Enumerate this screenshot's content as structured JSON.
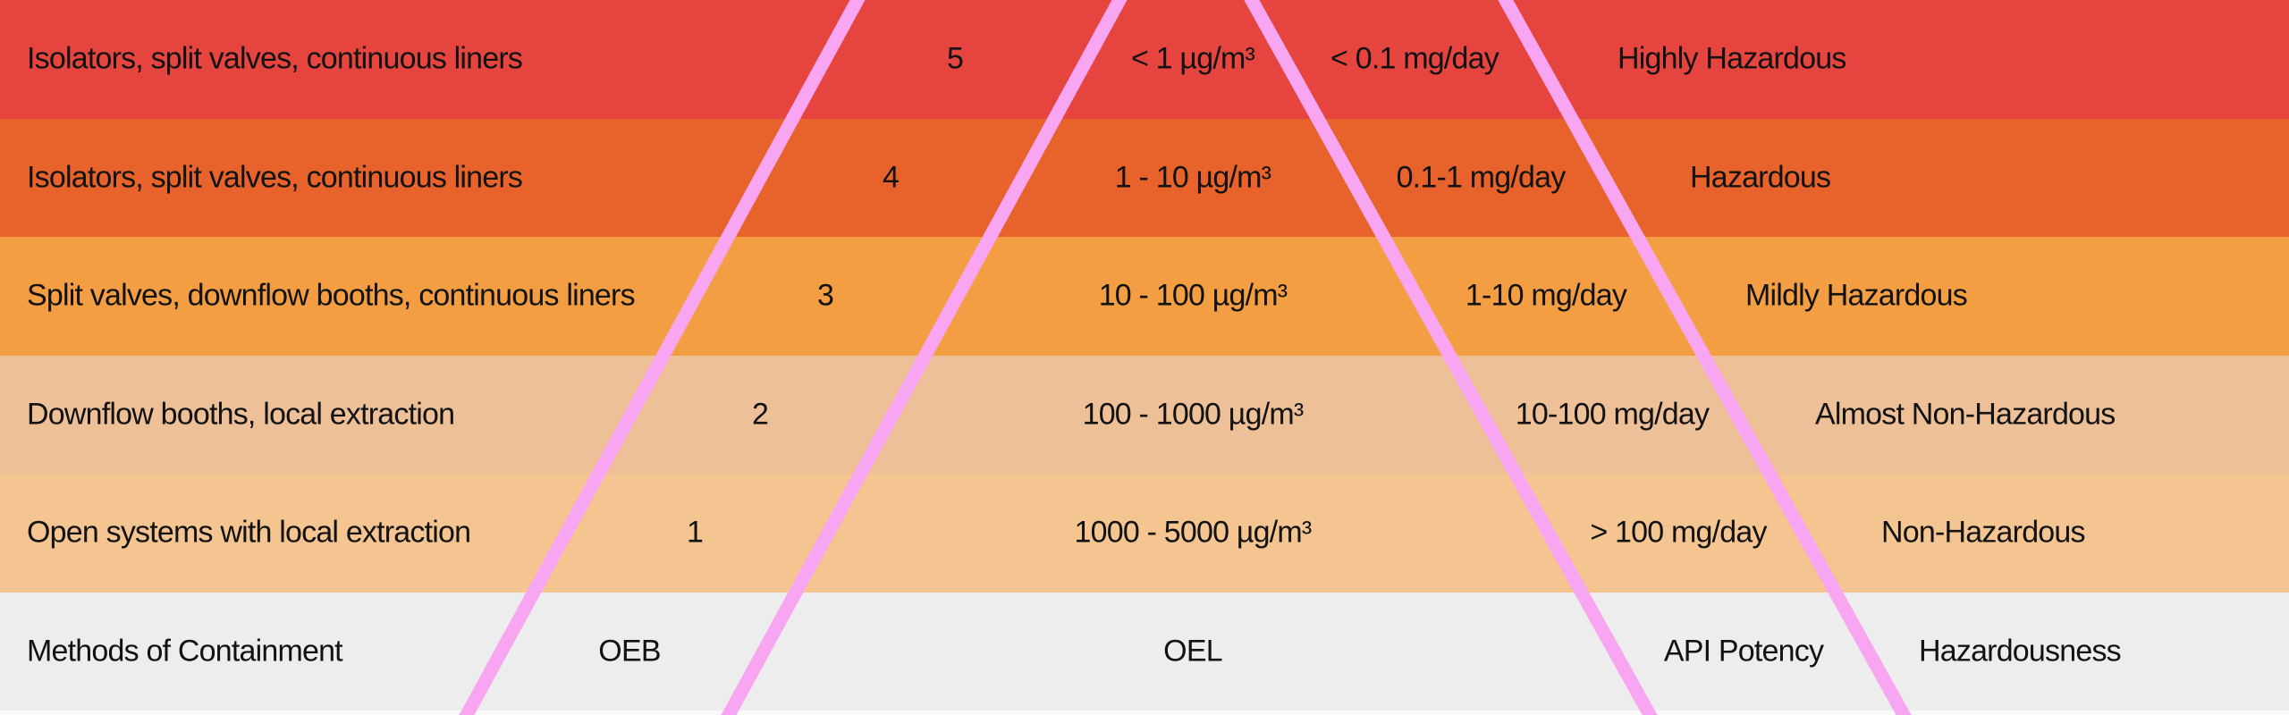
{
  "chart_data": {
    "type": "table",
    "columns": [
      "Methods of Containment",
      "OEB",
      "OEL",
      "API Potency",
      "Hazardousness"
    ],
    "rows": [
      {
        "methods": "Isolators, split valves, continuous liners",
        "oeb": "5",
        "oel": "< 1 µg/m³",
        "api_potency": "< 0.1 mg/day",
        "hazardousness": "Highly Hazardous",
        "band_color": "#E6453F"
      },
      {
        "methods": "Isolators, split valves, continuous liners",
        "oeb": "4",
        "oel": "1 - 10 µg/m³",
        "api_potency": "0.1-1 mg/day",
        "hazardousness": "Hazardous",
        "band_color": "#E8632B"
      },
      {
        "methods": "Split valves, downflow booths, continuous liners",
        "oeb": "3",
        "oel": "10 - 100 µg/m³",
        "api_potency": "1-10 mg/day",
        "hazardousness": "Mildly Hazardous",
        "band_color": "#F39E43"
      },
      {
        "methods": "Downflow booths, local extraction",
        "oeb": "2",
        "oel": "100 - 1000 µg/m³",
        "api_potency": "10-100 mg/day",
        "hazardousness": "Almost Non-Hazardous",
        "band_color": "#EEC097"
      },
      {
        "methods": "Open systems with local extraction",
        "oeb": "1",
        "oel": "1000 - 5000 µg/m³",
        "api_potency": "> 100 mg/day",
        "hazardousness": "Non-Hazardous",
        "band_color": "#F4C591"
      }
    ],
    "footer": {
      "methods": "Methods of Containment",
      "oeb": "OEB",
      "oel": "OEL",
      "api_potency": "API Potency",
      "hazardousness": "Hazardousness",
      "band_color": "#EDEDED"
    },
    "layout": {
      "grid": false,
      "legend": false,
      "funnel_lines": 4
    }
  },
  "colors": {
    "divider_pink": "#F9A6F2",
    "text": "#121212",
    "page_bg": "#F9F9F9"
  }
}
